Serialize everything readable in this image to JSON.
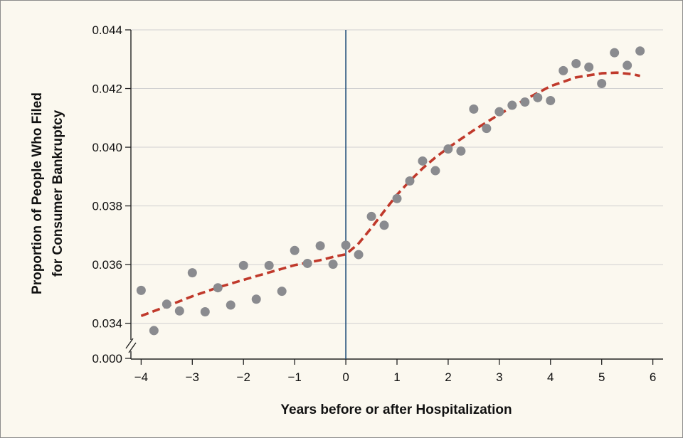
{
  "chart_data": {
    "type": "scatter",
    "xlabel": "Years before or after Hospitalization",
    "ylabel_line1": "Proportion of People Who Filed",
    "ylabel_line2": "for Consumer Bankruptcy",
    "xlim": [
      -4.2,
      6.2
    ],
    "ylim": [
      0.0337,
      0.044
    ],
    "x_ticks": [
      -4,
      -3,
      -2,
      -1,
      0,
      1,
      2,
      3,
      4,
      5,
      6
    ],
    "x_tick_labels": [
      "−4",
      "−3",
      "−2",
      "−1",
      "0",
      "1",
      "2",
      "3",
      "4",
      "5",
      "6"
    ],
    "y_ticks": [
      0.034,
      0.036,
      0.038,
      0.04,
      0.042,
      0.044
    ],
    "y_tick_labels": [
      "0.034",
      "0.036",
      "0.038",
      "0.040",
      "0.042",
      "0.044"
    ],
    "y_break_label": "0.000",
    "grid": true,
    "reference_line_x": 0,
    "colors": {
      "points": "#8a8b8f",
      "fit": "#c0392b",
      "reference_line": "#1f4e79",
      "grid": "#d0d0d0",
      "background": "#fbf8ef"
    },
    "series": [
      {
        "type": "scatter",
        "x": [
          -4,
          -3.75,
          -3.5,
          -3.25,
          -3,
          -2.75,
          -2.5,
          -2.25,
          -2,
          -1.75,
          -1.5,
          -1.25,
          -1,
          -0.75,
          -0.5,
          -0.25,
          0,
          0.25,
          0.5,
          0.75,
          1,
          1.25,
          1.5,
          1.75,
          2,
          2.25,
          2.5,
          2.75,
          3,
          3.25,
          3.5,
          3.75,
          4,
          4.25,
          4.5,
          4.75,
          5,
          5.25,
          5.5,
          5.75
        ],
        "y": [
          0.03512,
          0.03375,
          0.03465,
          0.03442,
          0.03572,
          0.03439,
          0.03521,
          0.03462,
          0.03597,
          0.03482,
          0.03597,
          0.03509,
          0.03648,
          0.03604,
          0.03664,
          0.03601,
          0.03666,
          0.03634,
          0.03764,
          0.03734,
          0.03825,
          0.03885,
          0.03953,
          0.0392,
          0.03994,
          0.03987,
          0.0413,
          0.04064,
          0.04121,
          0.04143,
          0.04154,
          0.04169,
          0.04159,
          0.04261,
          0.04285,
          0.04273,
          0.04217,
          0.04322,
          0.04279,
          0.04328
        ]
      },
      {
        "type": "line",
        "style": "dashed",
        "x": [
          -4,
          -3.5,
          -3,
          -2.5,
          -2,
          -1.5,
          -1,
          -0.5,
          -0.2,
          0,
          0.25,
          0.5,
          0.75,
          1,
          1.25,
          1.5,
          1.75,
          2,
          2.5,
          3,
          3.5,
          4,
          4.5,
          5,
          5.3,
          5.6,
          5.75
        ],
        "y": [
          0.03425,
          0.03458,
          0.03492,
          0.03522,
          0.03548,
          0.03573,
          0.03598,
          0.03615,
          0.03628,
          0.03635,
          0.03672,
          0.03725,
          0.03782,
          0.03838,
          0.03885,
          0.03928,
          0.03965,
          0.03998,
          0.04058,
          0.04112,
          0.04162,
          0.04208,
          0.04238,
          0.04252,
          0.04254,
          0.04249,
          0.04243
        ]
      }
    ]
  }
}
